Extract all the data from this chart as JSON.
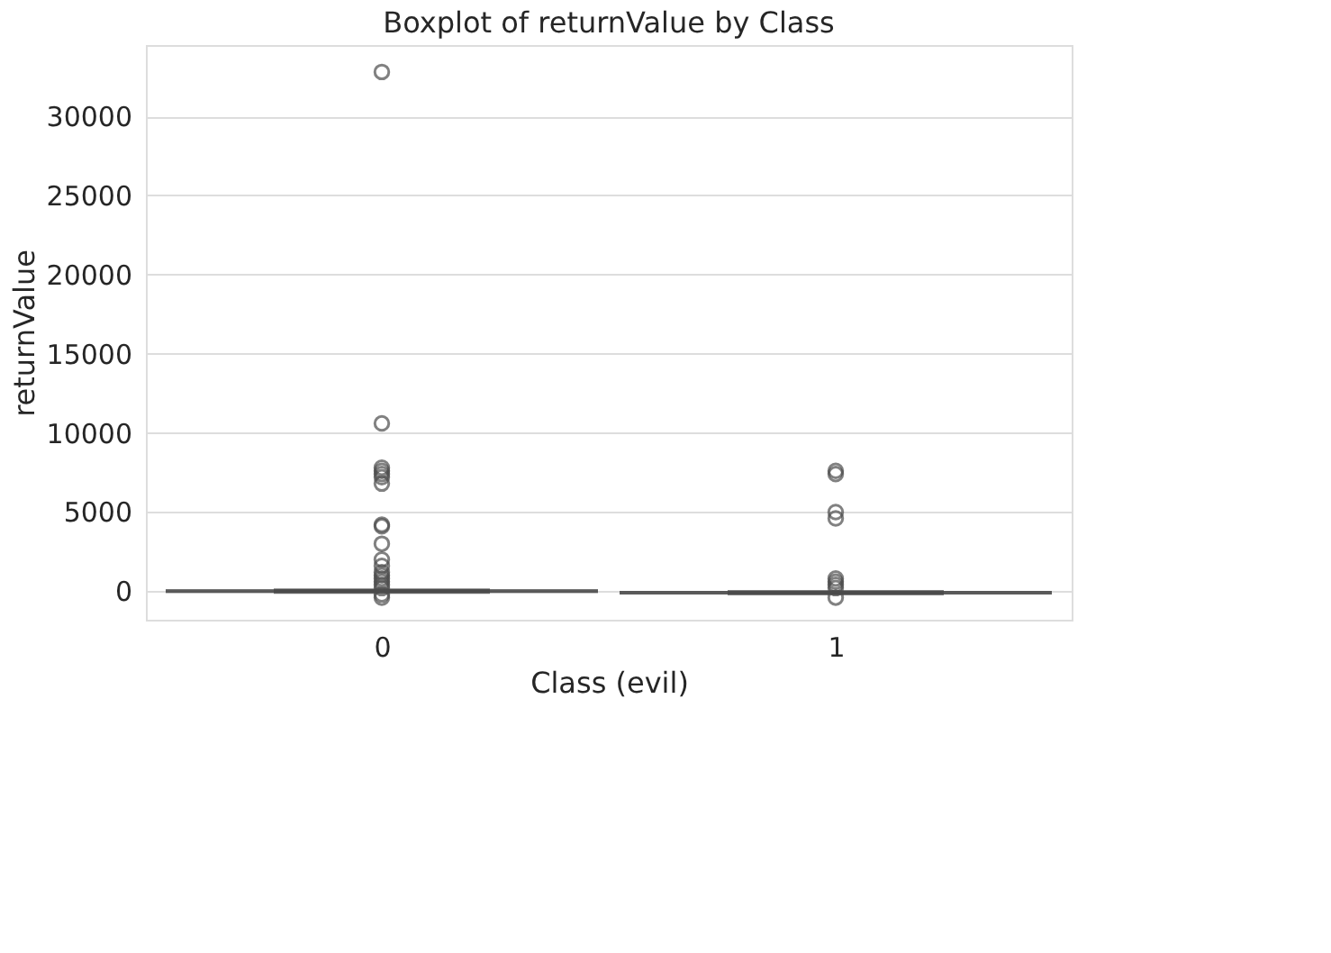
{
  "chart_data": {
    "type": "box",
    "title": "Boxplot of returnValue by Class",
    "xlabel": "Class (evil)",
    "ylabel": "returnValue",
    "categories": [
      "0",
      "1"
    ],
    "boxes": [
      {
        "low": 0,
        "q1": 0,
        "median": 0,
        "q3": 0,
        "high": 0,
        "outliers": [
          32800,
          10600,
          7800,
          7600,
          7400,
          7200,
          6800,
          4200,
          4100,
          3000,
          2000,
          1600,
          1200,
          1000,
          800,
          600,
          400,
          200,
          -200,
          -400
        ]
      },
      {
        "low": -100,
        "q1": -100,
        "median": -100,
        "q3": -100,
        "high": -100,
        "outliers": [
          7600,
          7400,
          5000,
          4600,
          800,
          600,
          400,
          200,
          -400
        ]
      }
    ],
    "color": "#4c4c4c",
    "ylim": [
      -1800,
      34500
    ],
    "yticks": [
      0,
      5000,
      10000,
      15000,
      20000,
      25000,
      30000
    ],
    "grid": "y"
  }
}
